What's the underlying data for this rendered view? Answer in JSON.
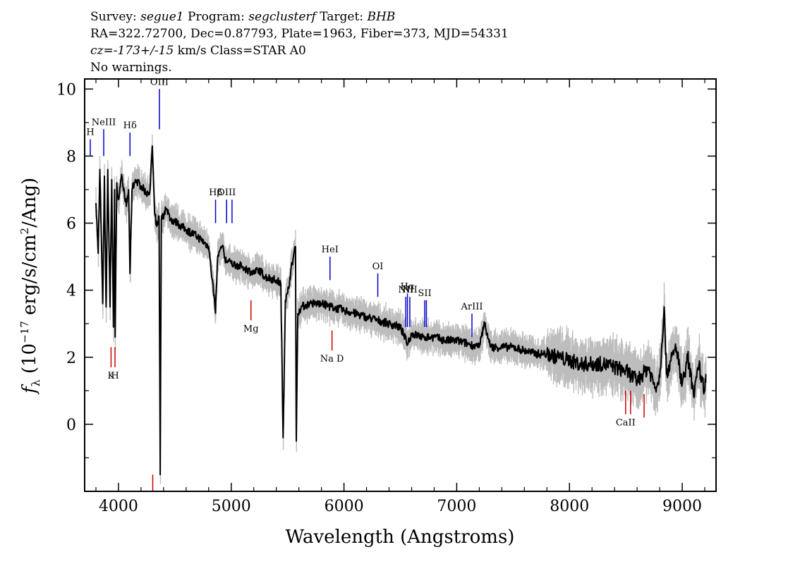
{
  "header": {
    "survey_label": "Survey:",
    "survey": "segue1",
    "program_label": "Program:",
    "program": "segclusterf",
    "target_label": "Target:",
    "target": "BHB",
    "line2": "RA=322.72700, Dec=0.87793, Plate=1963, Fiber=373, MJD=54331",
    "cz": "cz=-173+/-15",
    "cz_rest": " km/s Class=STAR A0",
    "line4": "No warnings."
  },
  "chart_data": {
    "type": "line",
    "xlabel": "Wavelength (Angstroms)",
    "ylabel": "f_λ (10^-17 erg/s/cm^2/Ang)",
    "xlim": [
      3700,
      9300
    ],
    "ylim": [
      -2,
      10.3
    ],
    "x_ticks": [
      4000,
      5000,
      6000,
      7000,
      8000,
      9000
    ],
    "y_ticks": [
      0,
      2,
      4,
      6,
      8,
      10
    ],
    "colors": {
      "spectrum": "#000000",
      "noise": "#bdbdbd",
      "emission": "#0000cc",
      "absorption": "#cc0000"
    },
    "series": [
      {
        "name": "flux",
        "points": [
          [
            3800,
            6.6
          ],
          [
            3820,
            5.1
          ],
          [
            3835,
            7.6
          ],
          [
            3860,
            3.6
          ],
          [
            3875,
            7.4
          ],
          [
            3890,
            3.5
          ],
          [
            3905,
            7.6
          ],
          [
            3925,
            3.5
          ],
          [
            3940,
            7.3
          ],
          [
            3955,
            2.9
          ],
          [
            3965,
            7.0
          ],
          [
            3970,
            2.6
          ],
          [
            3985,
            7.2
          ],
          [
            4000,
            6.7
          ],
          [
            4030,
            7.4
          ],
          [
            4070,
            6.5
          ],
          [
            4090,
            7.0
          ],
          [
            4102,
            4.5
          ],
          [
            4120,
            7.0
          ],
          [
            4150,
            7.3
          ],
          [
            4200,
            7.1
          ],
          [
            4250,
            6.9
          ],
          [
            4280,
            7.0
          ],
          [
            4300,
            8.3
          ],
          [
            4320,
            6.3
          ],
          [
            4340,
            5.9
          ],
          [
            4360,
            6.2
          ],
          [
            4370,
            -1.5
          ],
          [
            4380,
            6.1
          ],
          [
            4420,
            6.4
          ],
          [
            4471,
            6.1
          ],
          [
            4520,
            6.0
          ],
          [
            4600,
            5.8
          ],
          [
            4700,
            5.6
          ],
          [
            4800,
            5.3
          ],
          [
            4861,
            3.4
          ],
          [
            4880,
            5.0
          ],
          [
            4920,
            5.3
          ],
          [
            4950,
            4.9
          ],
          [
            5000,
            4.8
          ],
          [
            5100,
            4.7
          ],
          [
            5200,
            4.5
          ],
          [
            5250,
            4.6
          ],
          [
            5300,
            4.4
          ],
          [
            5400,
            4.3
          ],
          [
            5440,
            4.2
          ],
          [
            5460,
            -0.4
          ],
          [
            5480,
            3.7
          ],
          [
            5500,
            3.9
          ],
          [
            5540,
            4.8
          ],
          [
            5570,
            5.3
          ],
          [
            5577,
            -0.5
          ],
          [
            5590,
            3.3
          ],
          [
            5620,
            3.5
          ],
          [
            5700,
            3.6
          ],
          [
            5800,
            3.6
          ],
          [
            5890,
            3.5
          ],
          [
            6000,
            3.4
          ],
          [
            6100,
            3.3
          ],
          [
            6200,
            3.2
          ],
          [
            6300,
            3.1
          ],
          [
            6400,
            3.0
          ],
          [
            6500,
            2.9
          ],
          [
            6563,
            2.4
          ],
          [
            6600,
            2.7
          ],
          [
            6700,
            2.6
          ],
          [
            6800,
            2.6
          ],
          [
            6900,
            2.5
          ],
          [
            7000,
            2.5
          ],
          [
            7100,
            2.4
          ],
          [
            7200,
            2.3
          ],
          [
            7245,
            3.0
          ],
          [
            7300,
            2.3
          ],
          [
            7400,
            2.3
          ],
          [
            7500,
            2.3
          ],
          [
            7600,
            2.2
          ],
          [
            7700,
            2.1
          ],
          [
            7800,
            2.1
          ],
          [
            7900,
            2.0
          ],
          [
            8000,
            1.9
          ],
          [
            8100,
            1.8
          ],
          [
            8200,
            1.8
          ],
          [
            8300,
            1.8
          ],
          [
            8400,
            1.7
          ],
          [
            8500,
            1.6
          ],
          [
            8600,
            1.3
          ],
          [
            8700,
            1.7
          ],
          [
            8760,
            1.1
          ],
          [
            8800,
            1.4
          ],
          [
            8840,
            3.5
          ],
          [
            8860,
            1.5
          ],
          [
            8900,
            1.9
          ],
          [
            8945,
            2.3
          ],
          [
            9000,
            1.2
          ],
          [
            9050,
            2.0
          ],
          [
            9100,
            0.9
          ],
          [
            9150,
            1.7
          ],
          [
            9200,
            1.0
          ],
          [
            9210,
            1.5
          ]
        ]
      }
    ],
    "line_markers": [
      {
        "label": "H",
        "x": 3750,
        "kind": "emission",
        "y1": 8.5,
        "y2": 8.0
      },
      {
        "label": "NeIII",
        "x": 3869,
        "kind": "emission",
        "y1": 8.8,
        "y2": 8.0
      },
      {
        "label": "Hδ",
        "x": 4102,
        "kind": "emission",
        "y1": 8.7,
        "y2": 8.0
      },
      {
        "label": "OIII",
        "x": 4363,
        "kind": "emission",
        "y1": 10.0,
        "y2": 8.8
      },
      {
        "label": "Hβ",
        "x": 4861,
        "kind": "emission",
        "y1": 6.7,
        "y2": 6.0
      },
      {
        "label": "OIII",
        "x": 4959,
        "kind": "emission",
        "y1": 6.7,
        "y2": 6.0
      },
      {
        "label": "",
        "x": 5007,
        "kind": "emission",
        "y1": 6.7,
        "y2": 6.0
      },
      {
        "label": "HeI",
        "x": 5876,
        "kind": "emission",
        "y1": 5.0,
        "y2": 4.3
      },
      {
        "label": "OI",
        "x": 6300,
        "kind": "emission",
        "y1": 4.5,
        "y2": 3.8
      },
      {
        "label": "NII",
        "x": 6548,
        "kind": "emission",
        "y1": 3.8,
        "y2": 2.9
      },
      {
        "label": "Hα",
        "x": 6563,
        "kind": "emission",
        "y1": 3.9,
        "y2": 2.9
      },
      {
        "label": "NII",
        "x": 6584,
        "kind": "emission",
        "y1": 3.8,
        "y2": 2.9
      },
      {
        "label": "SII",
        "x": 6716,
        "kind": "emission",
        "y1": 3.7,
        "y2": 2.9
      },
      {
        "label": "",
        "x": 6731,
        "kind": "emission",
        "y1": 3.7,
        "y2": 2.9
      },
      {
        "label": "ArIII",
        "x": 7135,
        "kind": "emission",
        "y1": 3.3,
        "y2": 2.6
      },
      {
        "label": "K",
        "x": 3934,
        "kind": "absorption",
        "y1": 2.3,
        "y2": 1.7
      },
      {
        "label": "H",
        "x": 3969,
        "kind": "absorption",
        "y1": 2.3,
        "y2": 1.7
      },
      {
        "label": "",
        "x": 4304,
        "kind": "absorption",
        "y1": -1.5,
        "y2": -2.0
      },
      {
        "label": "Mg",
        "x": 5175,
        "kind": "absorption",
        "y1": 3.7,
        "y2": 3.1
      },
      {
        "label": "Na D",
        "x": 5894,
        "kind": "absorption",
        "y1": 2.8,
        "y2": 2.2
      },
      {
        "label": "CaII",
        "x": 8498,
        "kind": "absorption",
        "y1": 1.0,
        "y2": 0.3
      },
      {
        "label": "",
        "x": 8542,
        "kind": "absorption",
        "y1": 1.0,
        "y2": 0.3
      },
      {
        "label": "",
        "x": 8662,
        "kind": "absorption",
        "y1": 0.9,
        "y2": 0.2
      }
    ]
  }
}
